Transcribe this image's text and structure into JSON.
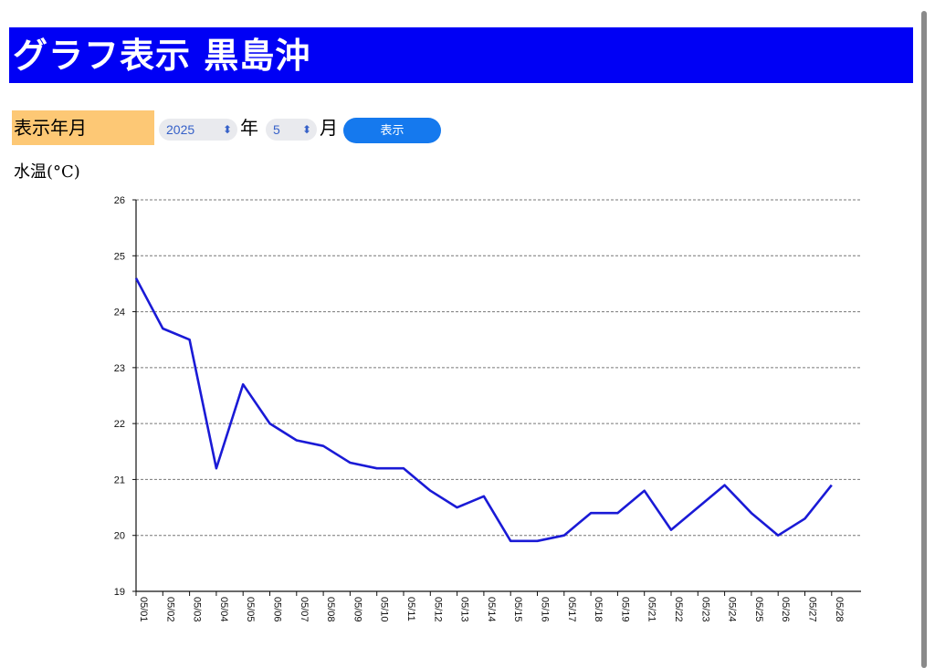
{
  "header": {
    "title": "グラフ表示 黒島沖"
  },
  "controls": {
    "label": "表示年月",
    "year_value": "2025",
    "year_unit": "年",
    "month_value": "5",
    "month_unit": "月",
    "show_button_label": "表示"
  },
  "chart_data": {
    "type": "line",
    "ylabel": "水温(°C)",
    "ylim": [
      19,
      26
    ],
    "yticks": [
      "26",
      "25",
      "24",
      "23",
      "22",
      "21",
      "20",
      "19"
    ],
    "grid": true,
    "categories": [
      "05/01",
      "05/02",
      "05/03",
      "05/04",
      "05/05",
      "05/06",
      "05/07",
      "05/08",
      "05/09",
      "05/10",
      "05/11",
      "05/12",
      "05/13",
      "05/14",
      "05/15",
      "05/16",
      "05/17",
      "05/18",
      "05/19",
      "05/21",
      "05/22",
      "05/23",
      "05/24",
      "05/25",
      "05/26",
      "05/27",
      "05/28"
    ],
    "values": [
      24.6,
      23.7,
      23.5,
      21.2,
      22.7,
      22.0,
      21.7,
      21.6,
      21.3,
      21.2,
      21.2,
      20.8,
      20.5,
      20.7,
      19.9,
      19.9,
      20.0,
      20.4,
      20.4,
      20.8,
      20.1,
      20.5,
      20.9,
      20.4,
      20.0,
      20.3,
      20.9
    ],
    "line_color": "#1a1ad6"
  }
}
